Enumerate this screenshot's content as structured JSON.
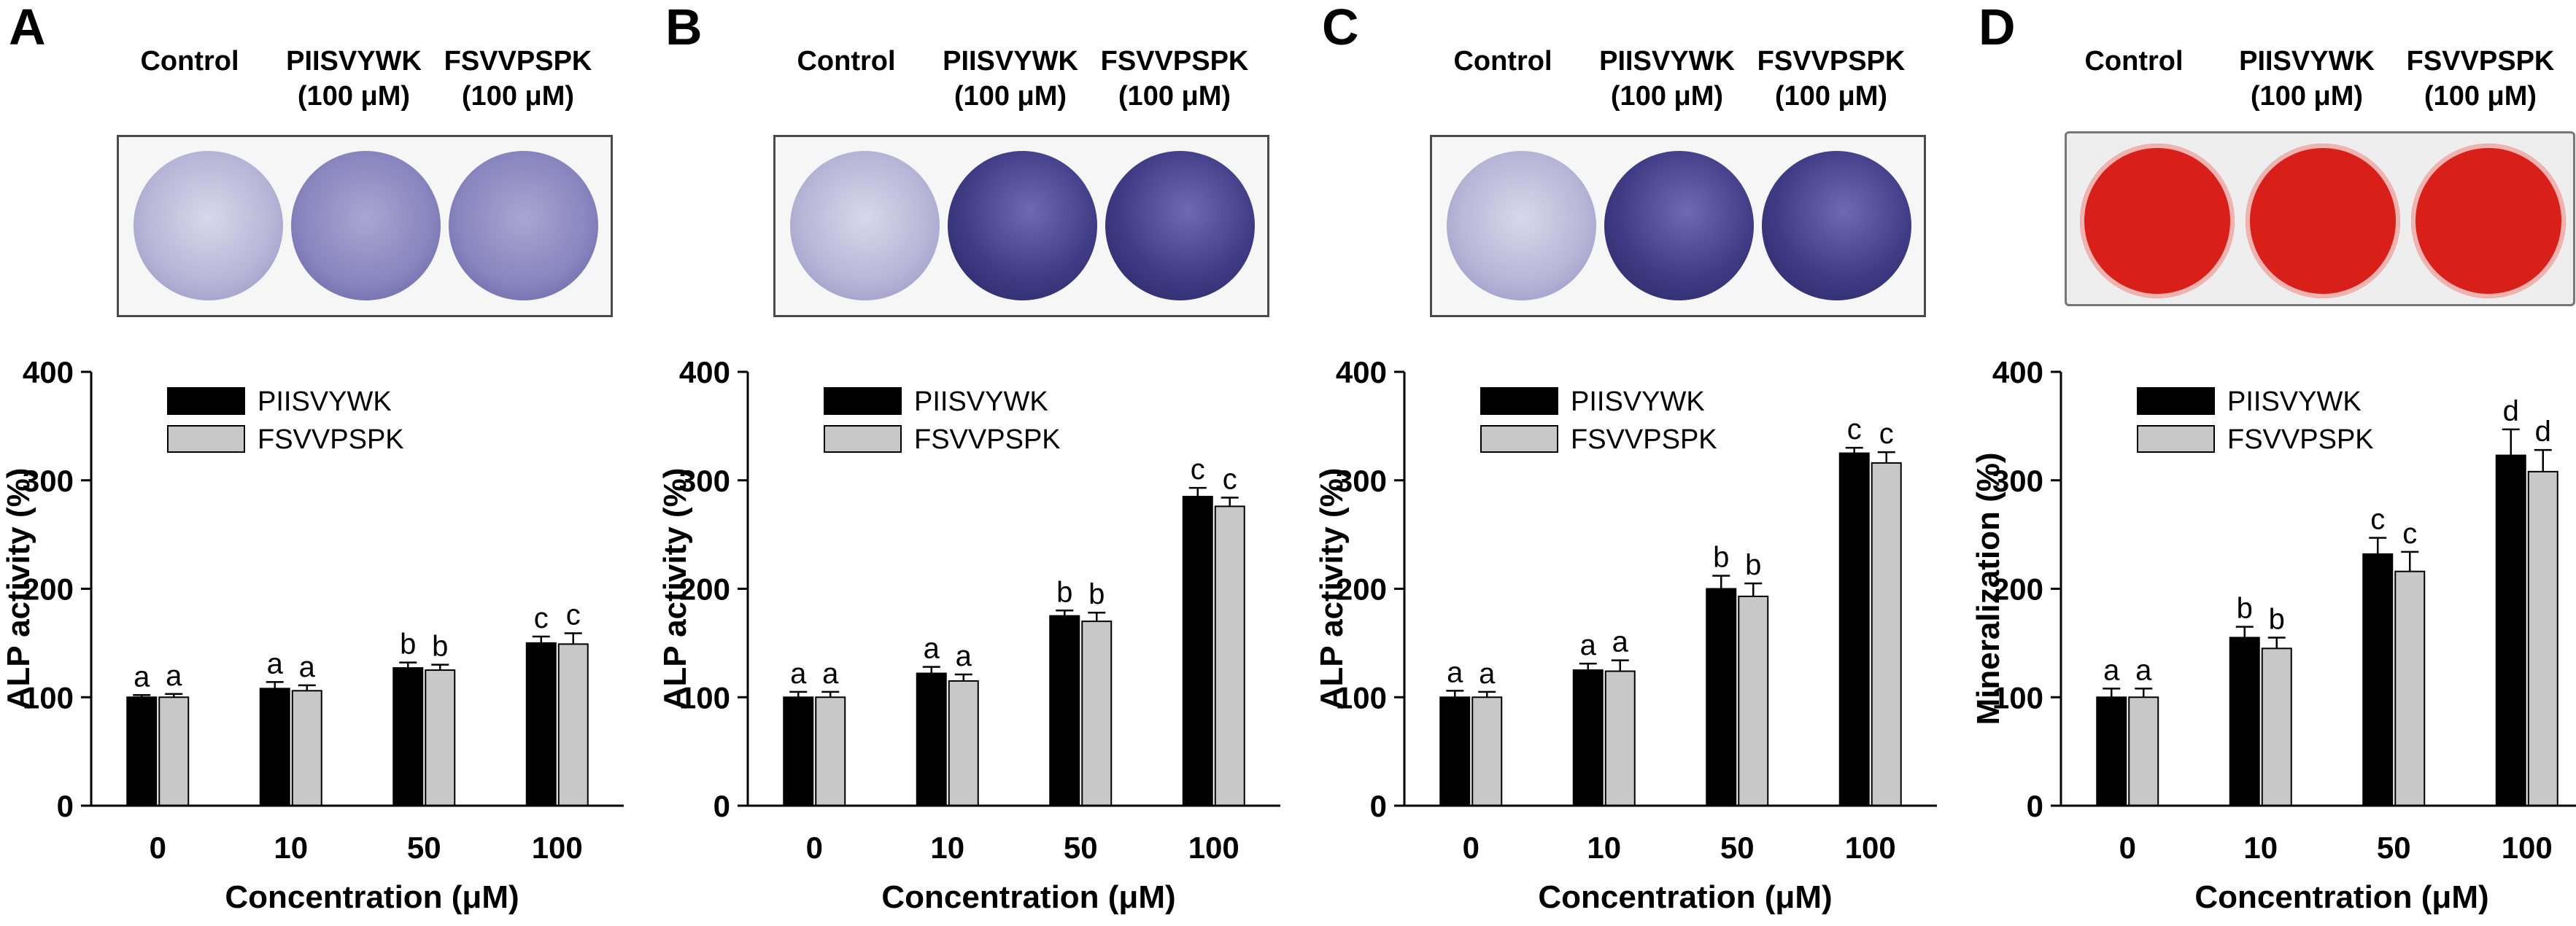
{
  "colors": {
    "series1": "#000000",
    "series2": "#c8c8c8",
    "alp_control": "#b7b3d6",
    "alp_weak": "#8884be",
    "alp_strong": "#3f3c86",
    "mineral_red": "#d81f1a"
  },
  "panels": [
    {
      "letter": "A",
      "wells": [
        {
          "label": "Control",
          "conc": "",
          "stain": "alp_control"
        },
        {
          "label": "PIISVYWK",
          "conc": "(100 μM)",
          "stain": "alp_weak"
        },
        {
          "label": "FSVVPSPK",
          "conc": "(100 μM)",
          "stain": "alp_weak"
        }
      ]
    },
    {
      "letter": "B",
      "wells": [
        {
          "label": "Control",
          "conc": "",
          "stain": "alp_control"
        },
        {
          "label": "PIISVYWK",
          "conc": "(100 μM)",
          "stain": "alp_strong"
        },
        {
          "label": "FSVVPSPK",
          "conc": "(100 μM)",
          "stain": "alp_strong"
        }
      ]
    },
    {
      "letter": "C",
      "wells": [
        {
          "label": "Control",
          "conc": "",
          "stain": "alp_control"
        },
        {
          "label": "PIISVYWK",
          "conc": "(100 μM)",
          "stain": "alp_strong"
        },
        {
          "label": "FSVVPSPK",
          "conc": "(100 μM)",
          "stain": "alp_strong"
        }
      ]
    },
    {
      "letter": "D",
      "wells": [
        {
          "label": "Control",
          "conc": "",
          "stain": "mineral_red"
        },
        {
          "label": "PIISVYWK",
          "conc": "(100 μM)",
          "stain": "mineral_red"
        },
        {
          "label": "FSVVPSPK",
          "conc": "(100 μM)",
          "stain": "mineral_red"
        }
      ]
    }
  ],
  "chart_data": [
    {
      "type": "bar",
      "title": "",
      "xlabel": "Concentration (μM)",
      "ylabel": "ALP activity (%)",
      "categories": [
        "0",
        "10",
        "50",
        "100"
      ],
      "ylim": [
        0,
        400
      ],
      "yticks": [
        0,
        100,
        200,
        300,
        400
      ],
      "legend": "top-left",
      "series": [
        {
          "name": "PIISVYWK",
          "values": [
            100,
            108,
            127,
            150
          ],
          "errors": [
            2,
            6,
            5,
            6
          ],
          "labels": [
            "a",
            "a",
            "b",
            "c"
          ]
        },
        {
          "name": "FSVVPSPK",
          "values": [
            100,
            106,
            125,
            149
          ],
          "errors": [
            3,
            5,
            5,
            10
          ],
          "labels": [
            "a",
            "a",
            "b",
            "c"
          ]
        }
      ]
    },
    {
      "type": "bar",
      "title": "",
      "xlabel": "Concentration (μM)",
      "ylabel": "ALP activity (%)",
      "categories": [
        "0",
        "10",
        "50",
        "100"
      ],
      "ylim": [
        0,
        400
      ],
      "yticks": [
        0,
        100,
        200,
        300,
        400
      ],
      "legend": "top-left",
      "series": [
        {
          "name": "PIISVYWK",
          "values": [
            100,
            122,
            175,
            285
          ],
          "errors": [
            5,
            6,
            5,
            8
          ],
          "labels": [
            "a",
            "a",
            "b",
            "c"
          ]
        },
        {
          "name": "FSVVPSPK",
          "values": [
            100,
            115,
            170,
            276
          ],
          "errors": [
            5,
            6,
            8,
            8
          ],
          "labels": [
            "a",
            "a",
            "b",
            "c"
          ]
        }
      ]
    },
    {
      "type": "bar",
      "title": "",
      "xlabel": "Concentration (μM)",
      "ylabel": "ALP activity (%)",
      "categories": [
        "0",
        "10",
        "50",
        "100"
      ],
      "ylim": [
        0,
        400
      ],
      "yticks": [
        0,
        100,
        200,
        300,
        400
      ],
      "legend": "top-left",
      "series": [
        {
          "name": "PIISVYWK",
          "values": [
            100,
            125,
            200,
            325
          ],
          "errors": [
            6,
            6,
            12,
            5
          ],
          "labels": [
            "a",
            "a",
            "b",
            "c"
          ]
        },
        {
          "name": "FSVVPSPK",
          "values": [
            100,
            124,
            193,
            316
          ],
          "errors": [
            5,
            10,
            12,
            10
          ],
          "labels": [
            "a",
            "a",
            "b",
            "c"
          ]
        }
      ]
    },
    {
      "type": "bar",
      "title": "",
      "xlabel": "Concentration (μM)",
      "ylabel": "Mineralization (%)",
      "categories": [
        "0",
        "10",
        "50",
        "100"
      ],
      "ylim": [
        0,
        400
      ],
      "yticks": [
        0,
        100,
        200,
        300,
        400
      ],
      "legend": "top-left",
      "series": [
        {
          "name": "PIISVYWK",
          "values": [
            100,
            155,
            232,
            323
          ],
          "errors": [
            8,
            10,
            15,
            24
          ],
          "labels": [
            "a",
            "b",
            "c",
            "d"
          ]
        },
        {
          "name": "FSVVPSPK",
          "values": [
            100,
            145,
            216,
            308
          ],
          "errors": [
            8,
            10,
            18,
            20
          ],
          "labels": [
            "a",
            "b",
            "c",
            "d"
          ]
        }
      ]
    }
  ]
}
